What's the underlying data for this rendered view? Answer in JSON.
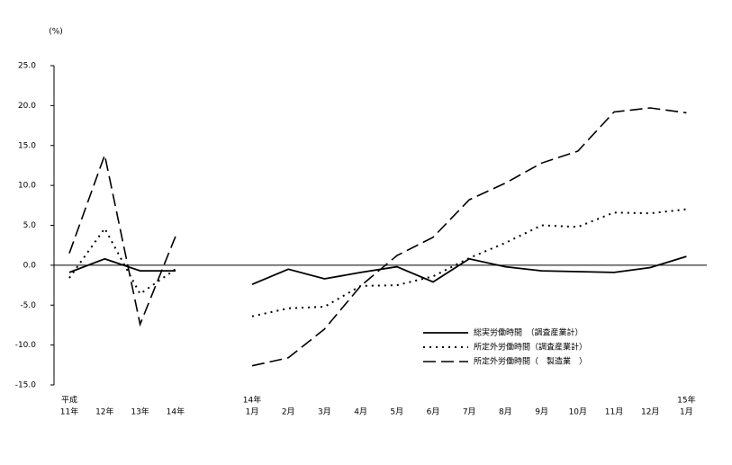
{
  "chart_data": {
    "type": "line",
    "unit_label": "(%)",
    "categories": [
      "11年",
      "12年",
      "13年",
      "14年",
      "1月",
      "2月",
      "3月",
      "4月",
      "5月",
      "6月",
      "7月",
      "8月",
      "9月",
      "10月",
      "11月",
      "12月",
      "1月"
    ],
    "upper_labels": [
      "平成",
      null,
      null,
      null,
      "14年",
      null,
      null,
      null,
      null,
      null,
      null,
      null,
      null,
      null,
      null,
      null,
      "15年"
    ],
    "ylim": [
      -15,
      25
    ],
    "yticks": [
      {
        "value": -15,
        "label": "-15.0"
      },
      {
        "value": -10,
        "label": "-10.0"
      },
      {
        "value": -5,
        "label": "-5.0"
      },
      {
        "value": 0,
        "label": "0.0"
      },
      {
        "value": 5,
        "label": "5.0"
      },
      {
        "value": 10,
        "label": "10.0"
      },
      {
        "value": 15,
        "label": "15.0"
      },
      {
        "value": 20,
        "label": "20.0"
      },
      {
        "value": 25,
        "label": "25.0"
      }
    ],
    "grid": false,
    "legend_position": "lower-right",
    "series": [
      {
        "name": "総実労働時間　（調査産業計）",
        "color": "#000000",
        "line_style": "solid",
        "values": [
          -0.9,
          0.8,
          -0.7,
          -0.7,
          -2.4,
          -0.5,
          -1.7,
          -0.9,
          -0.2,
          -2.1,
          0.8,
          -0.2,
          -0.7,
          -0.8,
          -0.9,
          -0.3,
          1.1
        ]
      },
      {
        "name": "所定外労働時間（調査産業計）",
        "color": "#000000",
        "line_style": "dotted",
        "values": [
          -1.6,
          4.6,
          -3.6,
          -0.5,
          -6.4,
          -5.4,
          -5.2,
          -2.6,
          -2.5,
          -1.4,
          0.9,
          2.8,
          5.0,
          4.8,
          6.6,
          6.5,
          7.0
        ]
      },
      {
        "name": "所定外労働時間（　製造業　）",
        "color": "#000000",
        "line_style": "dashed",
        "values": [
          1.5,
          13.8,
          -7.4,
          3.6,
          -12.6,
          -11.6,
          -8.0,
          -2.6,
          1.2,
          3.5,
          8.2,
          10.3,
          12.8,
          14.3,
          19.2,
          19.7,
          19.1
        ]
      }
    ]
  }
}
